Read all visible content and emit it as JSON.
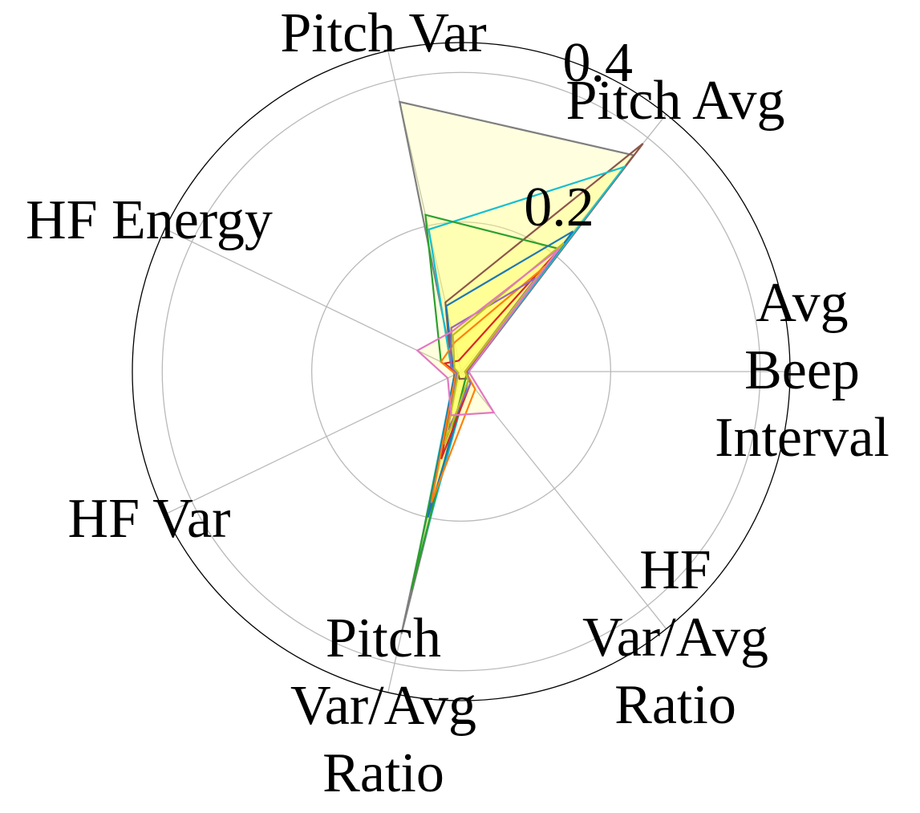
{
  "chart_data": {
    "type": "radar",
    "title": "",
    "axes": [
      "Avg\nBeep\nInterval",
      "Pitch Avg",
      "Pitch Var",
      "HF Energy",
      "HF Var",
      "Pitch\nVar/Avg\nRatio",
      "HF\nVar/Avg\nRatio"
    ],
    "rlim": [
      0,
      0.44
    ],
    "rticks": [
      0.2,
      0.4
    ],
    "rtick_labels": [
      "0.2",
      "0.4"
    ],
    "grid": true,
    "fill_color": "#ffff66",
    "series": [
      {
        "color": "#7f7f7f",
        "values": [
          0.008,
          0.37,
          0.37,
          0.012,
          0.005,
          0.36,
          0.01
        ]
      },
      {
        "color": "#8c564b",
        "values": [
          0.01,
          0.39,
          0.095,
          0.015,
          0.005,
          0.01,
          0.012
        ]
      },
      {
        "color": "#17becf",
        "values": [
          0.009,
          0.35,
          0.195,
          0.015,
          0.01,
          0.28,
          0.015
        ]
      },
      {
        "color": "#2ca02c",
        "values": [
          0.009,
          0.21,
          0.215,
          0.03,
          0.008,
          0.3,
          0.01
        ]
      },
      {
        "color": "#1f77b4",
        "values": [
          0.008,
          0.24,
          0.09,
          0.012,
          0.01,
          0.2,
          0.015
        ]
      },
      {
        "color": "#d62728",
        "values": [
          0.006,
          0.2,
          0.015,
          0.025,
          0.005,
          0.12,
          0.02
        ]
      },
      {
        "color": "#ff7f0e",
        "values": [
          0.006,
          0.18,
          0.04,
          0.03,
          0.008,
          0.18,
          0.03
        ]
      },
      {
        "color": "#9467bd",
        "values": [
          0.005,
          0.16,
          0.06,
          0.015,
          0.006,
          0.08,
          0.02
        ]
      },
      {
        "color": "#bcbd22",
        "values": [
          0.005,
          0.22,
          0.05,
          0.01,
          0.004,
          0.1,
          0.015
        ]
      },
      {
        "color": "#e377c2",
        "values": [
          0.01,
          0.21,
          0.055,
          0.065,
          0.02,
          0.06,
          0.07
        ]
      }
    ]
  }
}
